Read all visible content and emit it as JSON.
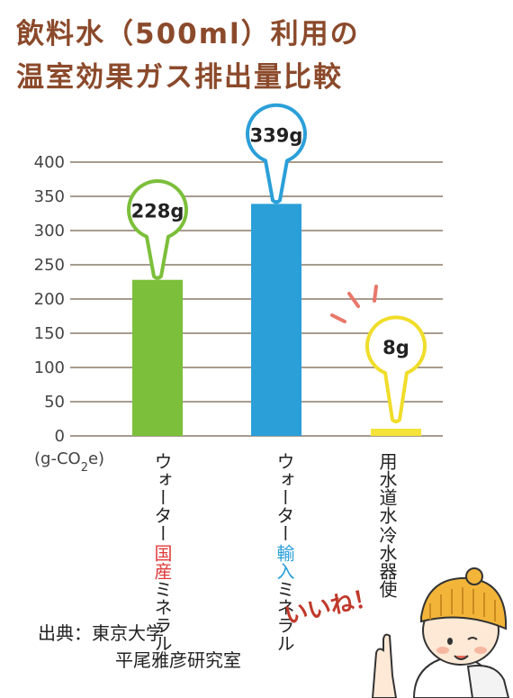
{
  "title_line1": "飲料水（500ml）利用の",
  "title_line2": "温室効果ガス排出量比較",
  "chart_data": {
    "type": "bar",
    "title": "飲料水（500ml）利用の温室効果ガス排出量比較",
    "ylabel": "(g-CO2e)",
    "ylim": [
      0,
      400
    ],
    "yticks": [
      0,
      50,
      100,
      150,
      200,
      250,
      300,
      350,
      400
    ],
    "categories": [
      {
        "highlight": "国産",
        "rest": "ミネラルウォーター",
        "highlight_color": "#e03a3a"
      },
      {
        "highlight": "輸入",
        "rest": "ミネラルウォーター",
        "highlight_color": "#2b9fd8"
      },
      {
        "highlight": "",
        "rest": "冷水器使用水道水",
        "highlight_color": "#222222"
      }
    ],
    "values": [
      228,
      339,
      8
    ],
    "value_labels": [
      "228g",
      "339g",
      "8g"
    ],
    "colors": [
      "#7cbf3a",
      "#2b9fd8",
      "#f5e33a"
    ],
    "grid": true
  },
  "unit_label": "(g-CO",
  "unit_sub": "2",
  "unit_tail": "e)",
  "source_label": "出典：東京大学",
  "source_line2": "平尾雅彦研究室",
  "exclaim": "いいね！",
  "colors": {
    "title": "#8b4a2b",
    "axis": "#8b7a6a"
  }
}
